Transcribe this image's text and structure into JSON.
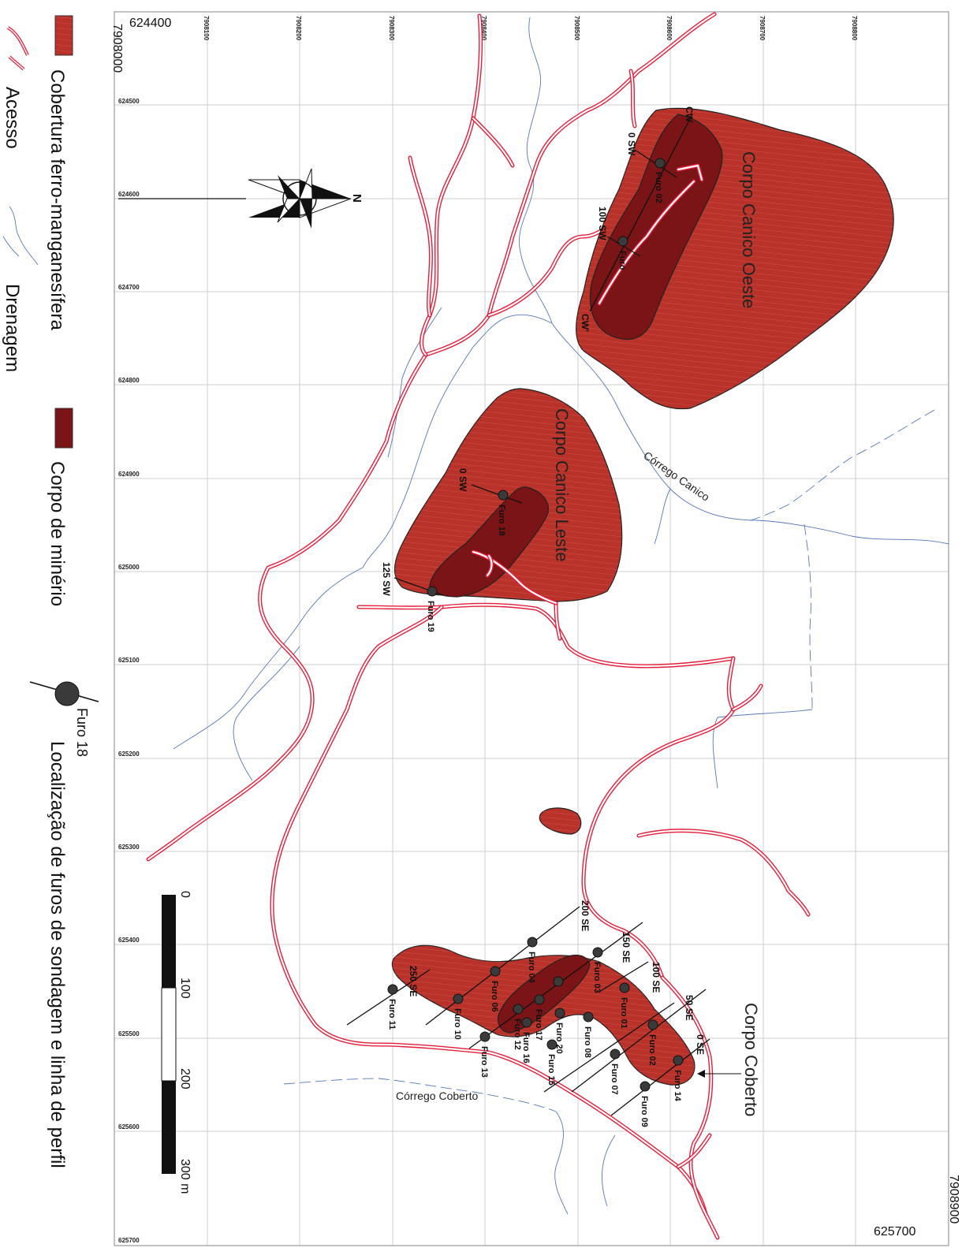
{
  "map": {
    "corners": {
      "top_left_x": "624400",
      "top_left_y": "7908000",
      "bottom_right_x": "625700",
      "bottom_right_y": "7908900"
    },
    "ticks_y": [
      "7908100",
      "7908200",
      "7908300",
      "7908400",
      "7908500",
      "7908600",
      "7908700",
      "7908800"
    ],
    "ticks_x": [
      "624500",
      "624600",
      "624700",
      "624800",
      "624900",
      "625000",
      "625100",
      "625200",
      "625300",
      "625400",
      "625500",
      "625600",
      "625700"
    ],
    "north_label": "N",
    "bodies": {
      "oeste": "Corpo Canico Oeste",
      "leste": "Corpo Canico Leste",
      "coberto": "Corpo Coberto"
    },
    "creeks": {
      "canico": "Córrego Canico",
      "coberto": "Córrego Coberto"
    },
    "holes": {
      "h02_oeste": "Furo 02",
      "h_oeste_b": "Furo",
      "h18": "Furo 18",
      "h19": "Furo 19",
      "h14": "Furo 14",
      "h02": "Furo 02",
      "h09": "Furo 09",
      "h07": "Furo 07",
      "h01": "Furo 01",
      "h08": "Furo 08",
      "h03": "Furo 03",
      "h20": "Furo 20",
      "h15": "Furo 15",
      "h04": "Furo 04",
      "h17": "Furo 17",
      "h16": "Furo 16",
      "h12": "Furo 12",
      "h06": "Furo 06",
      "h13": "Furo 13",
      "h10": "Furo 10",
      "h11": "Furo 11"
    },
    "stations": {
      "sw0_oeste": "0 SW",
      "sw100_oeste": "100 SW",
      "cw": "CW",
      "cw_prime": "CW'",
      "sw0_leste": "0 SW",
      "sw125_leste": "125 SW",
      "se0": "0 SE",
      "se50": "50 SE",
      "se100": "100 SE",
      "se150": "150 SE",
      "se200": "200 SE",
      "se250": "250 SE"
    }
  },
  "scale": {
    "labels": [
      "0",
      "100",
      "200",
      "300 m"
    ]
  },
  "legend": {
    "cover": "Cobertura ferro-manganesífera",
    "access": "Acesso",
    "drainage": "Drenagem",
    "ore": "Corpo de minério",
    "hole_sample": "Furo  18",
    "hole_location": "Localização de furos de sondagem e linha de perfil"
  },
  "colors": {
    "cover": "#b8322a",
    "ore": "#7a1416",
    "road": "#e41e3a",
    "drainage": "#5577bb"
  }
}
